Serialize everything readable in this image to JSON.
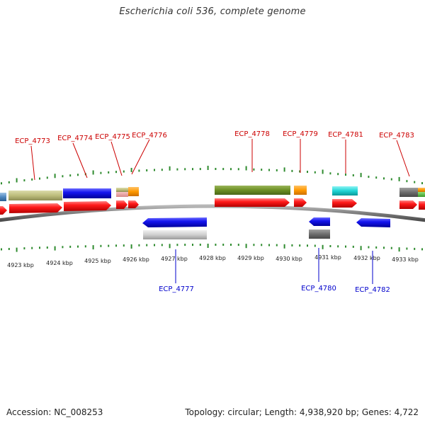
{
  "title": "Escherichia coli 536, complete genome",
  "footer": {
    "accession": "Accession: NC_008253",
    "summary": "Topology: circular; Length: 4,938,920 bp; Genes: 4,722"
  },
  "scale": {
    "ticks": [
      "4923 kbp",
      "4924 kbp",
      "4925 kbp",
      "4926 kbp",
      "4927 kbp",
      "4928 kbp",
      "4929 kbp",
      "4930 kbp",
      "4931 kbp",
      "4932 kbp",
      "4933 kbp"
    ]
  },
  "labels_top": [
    {
      "text": "ECP_4773"
    },
    {
      "text": "ECP_4774"
    },
    {
      "text": "ECP_4775"
    },
    {
      "text": "ECP_4776"
    },
    {
      "text": "ECP_4778"
    },
    {
      "text": "ECP_4779"
    },
    {
      "text": "ECP_4781"
    },
    {
      "text": "ECP_4783"
    }
  ],
  "labels_bottom": [
    {
      "text": "ECP_4777"
    },
    {
      "text": "ECP_4780"
    },
    {
      "text": "ECP_4782"
    }
  ],
  "colors": {
    "forward_label": "#cc0000",
    "reverse_label": "#0000cc",
    "cds_forward": "#ff1a1a",
    "cds_reverse": "#1a1aff",
    "backbone": "#808080",
    "tick": "#2e8b2e"
  }
}
